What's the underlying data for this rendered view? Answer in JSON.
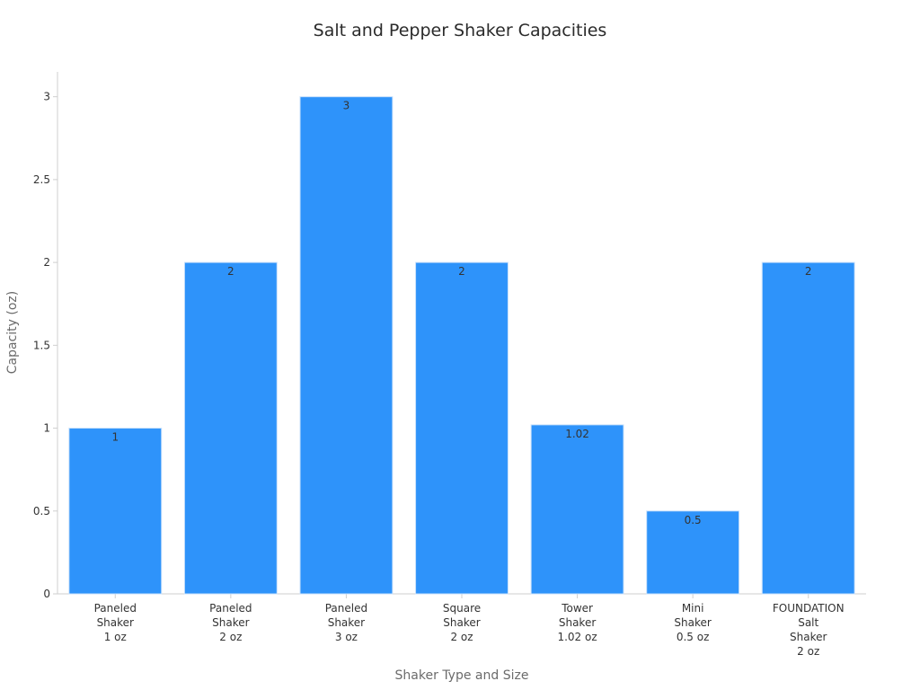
{
  "chart_data": {
    "type": "bar",
    "title": "Salt and Pepper Shaker Capacities",
    "xlabel": "Shaker Type and Size",
    "ylabel": "Capacity (oz)",
    "categories": [
      [
        "Paneled",
        "Shaker",
        "1 oz"
      ],
      [
        "Paneled",
        "Shaker",
        "2 oz"
      ],
      [
        "Paneled",
        "Shaker",
        "3 oz"
      ],
      [
        "Square",
        "Shaker",
        "2 oz"
      ],
      [
        "Tower",
        "Shaker",
        "1.02 oz"
      ],
      [
        "Mini",
        "Shaker",
        "0.5 oz"
      ],
      [
        "FOUNDATION",
        "Salt",
        "Shaker",
        "2 oz"
      ]
    ],
    "values": [
      1,
      2,
      3,
      2,
      1.02,
      0.5,
      2
    ],
    "data_labels": [
      "1",
      "2",
      "3",
      "2",
      "1.02",
      "0.5",
      "2"
    ],
    "ylim": [
      0,
      3.15
    ],
    "yticks": [
      0,
      0.5,
      1,
      1.5,
      2,
      2.5,
      3
    ],
    "ytick_labels": [
      "0",
      "0.5",
      "1",
      "1.5",
      "2",
      "2.5",
      "3"
    ],
    "bar_color": "#2e93fa",
    "grid": false,
    "legend": "none"
  }
}
